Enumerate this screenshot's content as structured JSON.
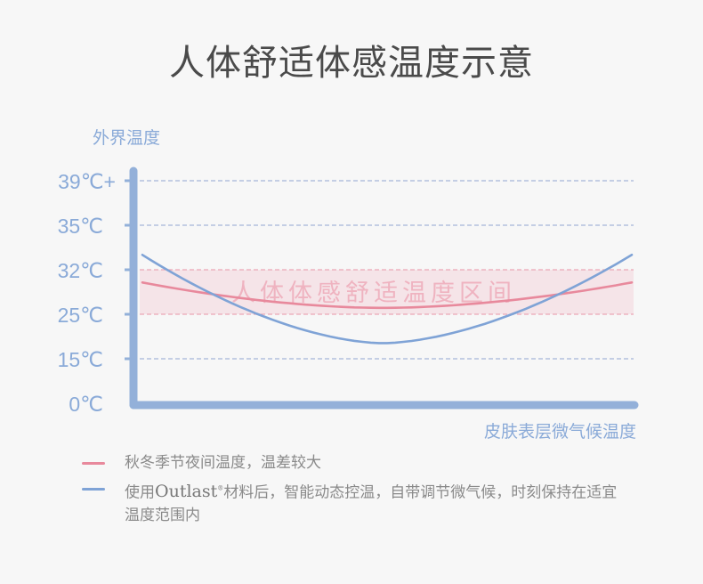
{
  "title": "人体舒适体感温度示意",
  "chart_data": {
    "type": "line",
    "ylabel": "外界温度",
    "xlabel": "皮肤表层微气候温度",
    "y_ticks": [
      "39℃+",
      "35℃",
      "32℃",
      "25℃",
      "15℃",
      "0℃"
    ],
    "y_tick_values": [
      39,
      35,
      32,
      25,
      15,
      0
    ],
    "y_scale": "ordinal-even-spacing",
    "grid": "dashed horizontal",
    "comfort_band": {
      "label": "人体体感舒适温度区间",
      "range": [
        25,
        32
      ],
      "color": "#e8899c"
    },
    "series": [
      {
        "name": "秋冬季节夜间温度，温差较大",
        "color": "#e8899c",
        "points": [
          {
            "pos": "start",
            "y": 30
          },
          {
            "pos": "middle",
            "y": 26
          },
          {
            "pos": "end",
            "y": 30
          }
        ]
      },
      {
        "name": "使用Outlast材料后，智能动态控温，自带调节微气候，时刻保持在适宜温度范围内",
        "color": "#7fa3d6",
        "points": [
          {
            "pos": "start",
            "y": 33
          },
          {
            "pos": "middle",
            "y": 18.5
          },
          {
            "pos": "end",
            "y": 33
          }
        ]
      }
    ],
    "axis_color": "#93b0d9"
  },
  "legend": [
    {
      "text": "秋冬季节夜间温度，温差较大",
      "color": "#e8899c"
    },
    {
      "pre": "使用",
      "brand": "Outlast",
      "post": "材料后，智能动态控温，自带调节微气候，时刻保持在适宜温度范围内",
      "color": "#7fa3d6"
    }
  ]
}
